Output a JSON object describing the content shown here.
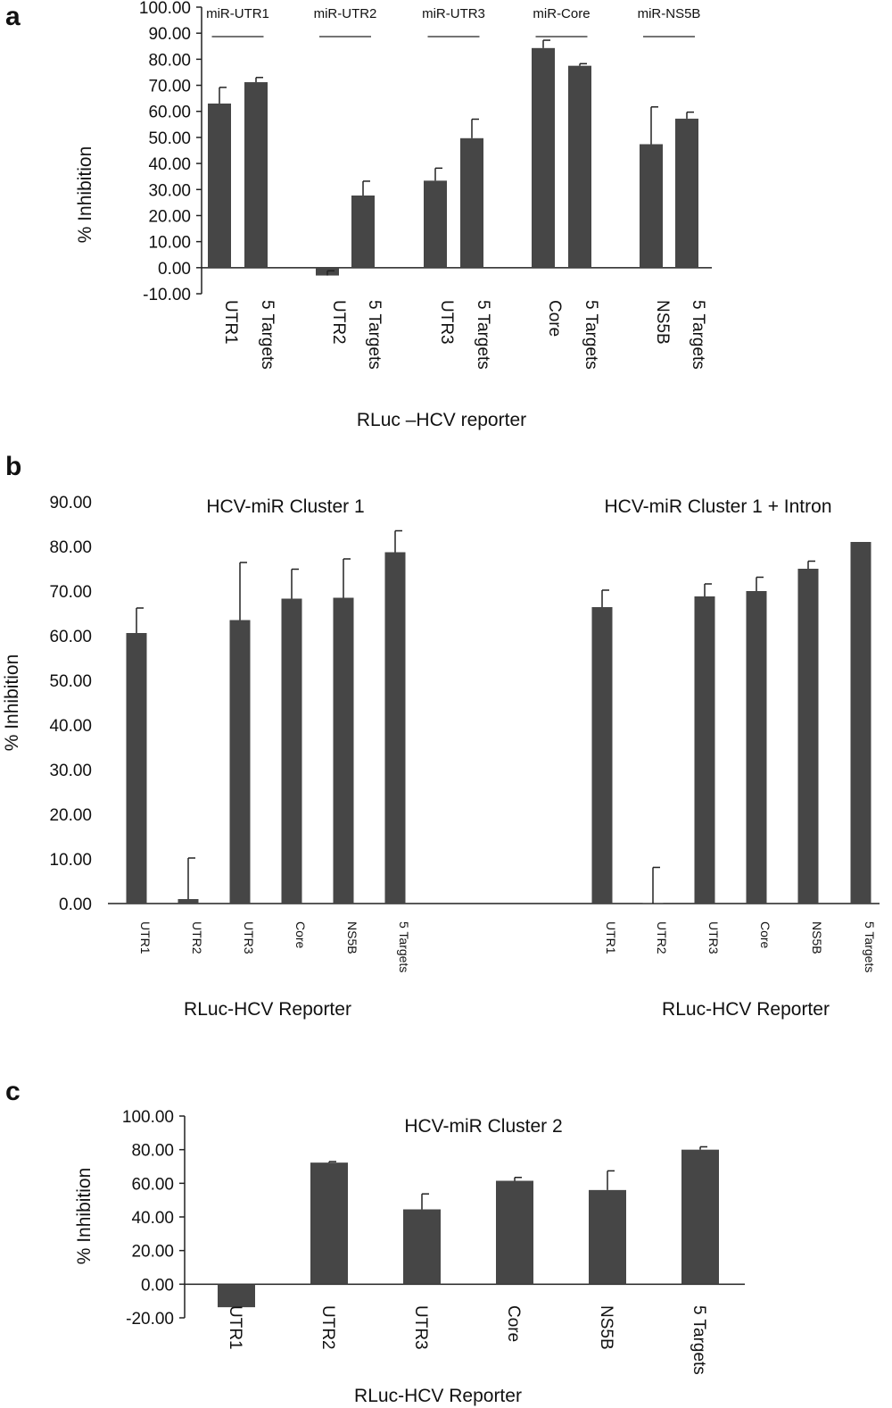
{
  "chart_data": [
    {
      "panel": "a",
      "type": "bar",
      "ylabel": "% Inhibition",
      "xlabel": "RLuc –HCV reporter",
      "ylim": [
        -10,
        100
      ],
      "yticks": [
        "100.00",
        "90.00",
        "80.00",
        "70.00",
        "60.00",
        "50.00",
        "40.00",
        "30.00",
        "20.00",
        "10.00",
        "0.00",
        "-10.00"
      ],
      "groups": [
        "miR-UTR1",
        "miR-UTR2",
        "miR-UTR3",
        "miR-Core",
        "miR-NS5B"
      ],
      "categories": [
        "UTR1",
        "5 Targets",
        "UTR2",
        "5 Targets",
        "UTR3",
        "5 Targets",
        "Core",
        "5 Targets",
        "NS5B",
        "5 Targets"
      ],
      "values": [
        63,
        71.2,
        -3,
        27.7,
        33.4,
        49.7,
        84.3,
        77.5,
        47.4,
        57.2
      ],
      "errors": [
        6.2,
        1.8,
        1.8,
        5.5,
        4.8,
        7.3,
        3.0,
        0.8,
        14.3,
        2.5
      ],
      "color": "#464646"
    },
    {
      "panel": "b",
      "type": "bar",
      "ylabel": "% Inhibition",
      "ylim": [
        0,
        90
      ],
      "yticks": [
        "90.00",
        "80.00",
        "70.00",
        "60.00",
        "50.00",
        "40.00",
        "30.00",
        "20.00",
        "10.00",
        "0.00"
      ],
      "subcharts": [
        {
          "title": "HCV-miR Cluster 1",
          "xlabel": "RLuc-HCV Reporter",
          "categories": [
            "UTR1",
            "UTR2",
            "UTR3",
            "Core",
            "NS5B",
            "5 Targets"
          ],
          "values": [
            60.6,
            1.0,
            63.5,
            68.3,
            68.5,
            78.7
          ],
          "errors": [
            5.6,
            9.2,
            12.9,
            6.6,
            8.7,
            4.8
          ]
        },
        {
          "title": "HCV-miR Cluster 1 + Intron",
          "xlabel": "RLuc-HCV Reporter",
          "categories": [
            "UTR1",
            "UTR2",
            "UTR3",
            "Core",
            "NS5B",
            "5 Targets"
          ],
          "values": [
            66.4,
            0,
            68.8,
            70.0,
            75.0,
            81.0
          ],
          "errors": [
            3.8,
            8.1,
            2.8,
            3.1,
            1.7,
            0
          ]
        }
      ],
      "color": "#464646"
    },
    {
      "panel": "c",
      "type": "bar",
      "title": "HCV-miR Cluster 2",
      "ylabel": "% Inhibition",
      "xlabel": "RLuc-HCV Reporter",
      "ylim": [
        -20,
        100
      ],
      "yticks": [
        "100.00",
        "80.00",
        "60.00",
        "40.00",
        "20.00",
        "0.00",
        "-20.00"
      ],
      "categories": [
        "UTR1",
        "UTR2",
        "UTR3",
        "Core",
        "NS5B",
        "5 Targets"
      ],
      "values": [
        -13.7,
        72.3,
        44.5,
        61.5,
        56.0,
        80.0
      ],
      "errors": [
        0,
        0.6,
        9.2,
        2.0,
        11.4,
        1.7
      ],
      "color": "#464646"
    }
  ]
}
